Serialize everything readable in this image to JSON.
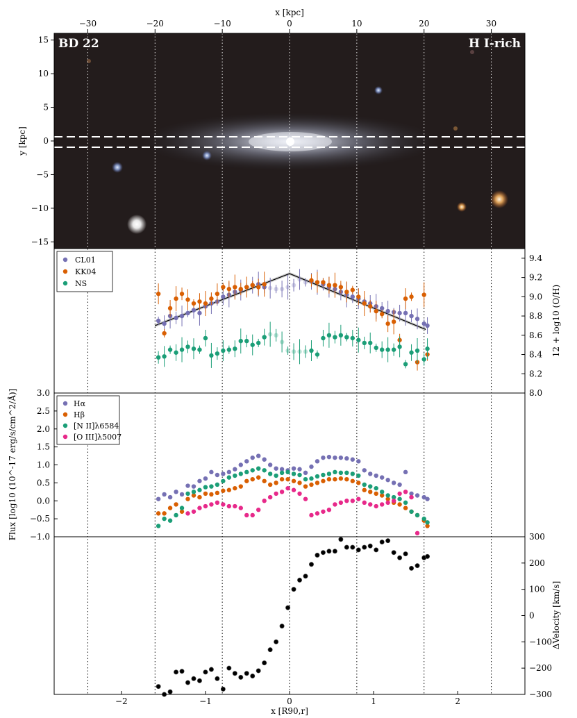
{
  "figure": {
    "galaxy_label": "BD 22",
    "class_label": "H I-rich",
    "colors": {
      "purple": "#7570b3",
      "orange": "#d95f02",
      "green": "#1b9e77",
      "pink": "#e7298a",
      "black": "#000000"
    }
  },
  "chart_data": [
    {
      "type": "image",
      "panel": "galaxy-image",
      "xlabel": "x [kpc]",
      "ylabel": "y [kpc]",
      "xlim": [
        -35,
        35
      ],
      "ylim": [
        -16,
        16
      ],
      "xticks": [
        -30,
        -20,
        -10,
        0,
        10,
        20,
        30
      ],
      "yticks": [
        -15,
        -10,
        -5,
        0,
        5,
        10,
        15
      ],
      "slit_y": [
        0.8,
        -0.8
      ],
      "vlines_kpc": [
        -30,
        -20,
        -10,
        0,
        10,
        20,
        30
      ]
    },
    {
      "type": "scatter",
      "panel": "metallicity",
      "ylabel": "12 + log10 (O/H)",
      "ylim": [
        8.0,
        9.5
      ],
      "yticks": [
        8.0,
        8.2,
        8.4,
        8.6,
        8.8,
        9.0,
        9.2,
        9.4
      ],
      "yticklabels": [
        "8.0",
        "8.2",
        "8.4",
        "8.6",
        "8.8",
        "9.0",
        "9.2",
        "9.4"
      ],
      "series": [
        {
          "name": "CL01",
          "color": "#7570b3",
          "x": [
            -1.56,
            -1.49,
            -1.42,
            -1.35,
            -1.28,
            -1.21,
            -1.14,
            -1.07,
            -1.0,
            -0.93,
            -0.86,
            -0.79,
            -0.72,
            -0.65,
            -0.58,
            -0.51,
            -0.44,
            -0.37,
            -0.3,
            -0.23,
            -0.16,
            -0.09,
            -0.02,
            0.05,
            0.12,
            0.19,
            0.26,
            0.33,
            0.4,
            0.47,
            0.54,
            0.61,
            0.68,
            0.75,
            0.82,
            0.89,
            0.96,
            1.03,
            1.1,
            1.17,
            1.24,
            1.31,
            1.38,
            1.45,
            1.52,
            1.6,
            1.64
          ],
          "y": [
            8.75,
            8.72,
            8.8,
            8.78,
            8.8,
            8.83,
            8.86,
            8.83,
            8.9,
            8.93,
            8.95,
            9.0,
            9.02,
            9.05,
            9.07,
            9.1,
            9.12,
            9.13,
            9.1,
            9.09,
            9.08,
            9.08,
            9.1,
            9.12,
            9.18,
            9.15,
            9.16,
            9.15,
            9.13,
            9.1,
            9.08,
            9.05,
            9.02,
            9.0,
            8.98,
            8.95,
            8.93,
            8.9,
            8.88,
            8.85,
            8.84,
            8.83,
            8.83,
            8.8,
            8.77,
            8.72,
            8.7
          ]
        },
        {
          "name": "KK04",
          "color": "#d95f02",
          "x": [
            -1.56,
            -1.49,
            -1.42,
            -1.35,
            -1.28,
            -1.21,
            -1.14,
            -1.07,
            -1.0,
            -0.93,
            -0.86,
            -0.79,
            -0.72,
            -0.65,
            -0.58,
            -0.51,
            -0.44,
            -0.37,
            -0.3,
            0.26,
            0.33,
            0.4,
            0.47,
            0.54,
            0.61,
            0.68,
            0.75,
            0.82,
            0.89,
            0.96,
            1.03,
            1.1,
            1.17,
            1.24,
            1.31,
            1.38,
            1.45,
            1.52,
            1.6,
            1.64
          ],
          "y": [
            9.03,
            8.62,
            8.88,
            8.98,
            9.03,
            8.97,
            8.93,
            8.95,
            8.93,
            8.98,
            9.03,
            9.1,
            9.08,
            9.1,
            9.08,
            9.1,
            9.12,
            9.1,
            9.13,
            9.17,
            9.15,
            9.15,
            9.12,
            9.12,
            9.1,
            9.05,
            9.07,
            9.0,
            8.93,
            8.9,
            8.85,
            8.82,
            8.72,
            8.74,
            8.55,
            8.98,
            9.0,
            8.32,
            9.02,
            8.4
          ]
        },
        {
          "name": "NS",
          "color": "#1b9e77",
          "x": [
            -1.56,
            -1.49,
            -1.42,
            -1.35,
            -1.28,
            -1.21,
            -1.14,
            -1.07,
            -1.0,
            -0.93,
            -0.86,
            -0.79,
            -0.72,
            -0.65,
            -0.58,
            -0.51,
            -0.44,
            -0.37,
            -0.3,
            -0.23,
            -0.16,
            -0.09,
            -0.02,
            0.05,
            0.12,
            0.19,
            0.26,
            0.33,
            0.4,
            0.47,
            0.54,
            0.61,
            0.68,
            0.75,
            0.82,
            0.89,
            0.96,
            1.03,
            1.1,
            1.17,
            1.24,
            1.31,
            1.38,
            1.45,
            1.52,
            1.6,
            1.64
          ],
          "y": [
            8.37,
            8.38,
            8.45,
            8.42,
            8.45,
            8.48,
            8.46,
            8.45,
            8.57,
            8.39,
            8.41,
            8.44,
            8.45,
            8.46,
            8.54,
            8.54,
            8.5,
            8.52,
            8.58,
            8.61,
            8.6,
            8.53,
            8.44,
            8.43,
            8.43,
            8.43,
            8.44,
            8.4,
            8.57,
            8.6,
            8.58,
            8.6,
            8.58,
            8.57,
            8.55,
            8.52,
            8.52,
            8.47,
            8.45,
            8.45,
            8.45,
            8.48,
            8.3,
            8.42,
            8.44,
            8.35,
            8.46
          ]
        }
      ],
      "fit_line": {
        "x": [
          -1.6,
          0.0,
          1.62
        ],
        "y": [
          8.7,
          9.24,
          8.66
        ]
      }
    },
    {
      "type": "scatter",
      "panel": "flux",
      "ylabel": "Flux [log10 (10^-17 erg/s/cm^2/Å)]",
      "ylim": [
        -1.0,
        3.0
      ],
      "yticks": [
        -1.0,
        -0.5,
        0.0,
        0.5,
        1.0,
        1.5,
        2.0,
        2.5,
        3.0
      ],
      "yticklabels": [
        "−1.0",
        "−0.5",
        "0.0",
        "0.5",
        "1.0",
        "1.5",
        "2.0",
        "2.5",
        "3.0"
      ],
      "series": [
        {
          "name": "Hα",
          "color": "#7570b3",
          "x": [
            -1.56,
            -1.49,
            -1.42,
            -1.35,
            -1.28,
            -1.21,
            -1.14,
            -1.07,
            -1.0,
            -0.93,
            -0.86,
            -0.79,
            -0.72,
            -0.65,
            -0.58,
            -0.51,
            -0.44,
            -0.37,
            -0.3,
            -0.23,
            -0.16,
            -0.09,
            -0.02,
            0.05,
            0.12,
            0.19,
            0.26,
            0.33,
            0.4,
            0.47,
            0.54,
            0.61,
            0.68,
            0.75,
            0.82,
            0.89,
            0.96,
            1.03,
            1.1,
            1.17,
            1.24,
            1.31,
            1.38,
            1.45,
            1.52,
            1.6,
            1.64
          ],
          "y": [
            0.05,
            0.18,
            0.1,
            0.25,
            0.18,
            0.42,
            0.4,
            0.55,
            0.62,
            0.8,
            0.72,
            0.75,
            0.8,
            0.88,
            1.0,
            1.1,
            1.2,
            1.25,
            1.15,
            1.0,
            0.9,
            0.88,
            0.85,
            0.9,
            0.88,
            0.78,
            0.95,
            1.1,
            1.2,
            1.22,
            1.2,
            1.2,
            1.18,
            1.15,
            1.1,
            0.85,
            0.75,
            0.7,
            0.65,
            0.58,
            0.5,
            0.45,
            0.8,
            0.2,
            0.15,
            0.1,
            0.05
          ]
        },
        {
          "name": "Hβ",
          "color": "#d95f02",
          "x": [
            -1.56,
            -1.49,
            -1.42,
            -1.35,
            -1.28,
            -1.21,
            -1.14,
            -1.07,
            -1.0,
            -0.93,
            -0.86,
            -0.79,
            -0.72,
            -0.65,
            -0.58,
            -0.51,
            -0.44,
            -0.37,
            -0.3,
            -0.23,
            -0.16,
            -0.09,
            -0.02,
            0.05,
            0.12,
            0.19,
            0.26,
            0.33,
            0.4,
            0.47,
            0.54,
            0.61,
            0.68,
            0.75,
            0.82,
            0.89,
            0.96,
            1.03,
            1.1,
            1.17,
            1.24,
            1.31,
            1.38,
            1.45,
            1.52,
            1.6,
            1.64
          ],
          "y": [
            -0.35,
            -0.35,
            -0.2,
            -0.1,
            -0.3,
            0.05,
            0.15,
            0.1,
            0.2,
            0.18,
            0.22,
            0.28,
            0.3,
            0.35,
            0.4,
            0.55,
            0.6,
            0.65,
            0.55,
            0.45,
            0.5,
            0.6,
            0.6,
            0.55,
            0.5,
            0.4,
            0.45,
            0.5,
            0.55,
            0.6,
            0.6,
            0.62,
            0.6,
            0.55,
            0.5,
            0.3,
            0.25,
            0.2,
            0.15,
            0.05,
            -0.05,
            -0.1,
            -0.2,
            -0.3,
            -0.4,
            -0.55,
            -0.7
          ]
        },
        {
          "name": "[N II]λ6584",
          "color": "#1b9e77",
          "x": [
            -1.56,
            -1.49,
            -1.42,
            -1.35,
            -1.28,
            -1.21,
            -1.14,
            -1.07,
            -1.0,
            -0.93,
            -0.86,
            -0.79,
            -0.72,
            -0.65,
            -0.58,
            -0.51,
            -0.44,
            -0.37,
            -0.3,
            -0.23,
            -0.16,
            -0.09,
            -0.02,
            0.05,
            0.12,
            0.19,
            0.26,
            0.33,
            0.4,
            0.47,
            0.54,
            0.61,
            0.68,
            0.75,
            0.82,
            0.89,
            0.96,
            1.03,
            1.1,
            1.17,
            1.24,
            1.31,
            1.38,
            1.45,
            1.52,
            1.6,
            1.64
          ],
          "y": [
            -0.7,
            -0.5,
            -0.55,
            -0.4,
            -0.2,
            0.2,
            0.25,
            0.3,
            0.38,
            0.4,
            0.45,
            0.55,
            0.65,
            0.7,
            0.75,
            0.8,
            0.85,
            0.9,
            0.85,
            0.75,
            0.7,
            0.78,
            0.8,
            0.75,
            0.72,
            0.6,
            0.62,
            0.68,
            0.72,
            0.75,
            0.8,
            0.78,
            0.78,
            0.75,
            0.7,
            0.45,
            0.4,
            0.35,
            0.25,
            0.15,
            0.1,
            0.05,
            -0.05,
            -0.3,
            -0.4,
            -0.5,
            -0.6
          ]
        },
        {
          "name": "[O III]λ5007",
          "color": "#e7298a",
          "x": [
            -1.21,
            -1.14,
            -1.07,
            -1.0,
            -0.93,
            -0.86,
            -0.79,
            -0.72,
            -0.65,
            -0.58,
            -0.51,
            -0.44,
            -0.37,
            -0.3,
            -0.23,
            -0.16,
            -0.09,
            -0.02,
            0.05,
            0.12,
            0.19,
            0.26,
            0.33,
            0.4,
            0.47,
            0.54,
            0.61,
            0.68,
            0.75,
            0.82,
            0.89,
            0.96,
            1.03,
            1.1,
            1.17,
            1.24,
            1.31,
            1.38,
            1.45,
            1.52
          ],
          "y": [
            -0.35,
            -0.3,
            -0.2,
            -0.15,
            -0.1,
            -0.05,
            -0.1,
            -0.15,
            -0.15,
            -0.2,
            -0.4,
            -0.4,
            -0.25,
            0.0,
            0.1,
            0.2,
            0.25,
            0.35,
            0.3,
            0.2,
            0.05,
            -0.4,
            -0.35,
            -0.3,
            -0.25,
            -0.1,
            -0.05,
            0.0,
            0.0,
            0.05,
            -0.05,
            -0.1,
            -0.15,
            -0.1,
            -0.05,
            0.0,
            0.2,
            0.25,
            0.1,
            -0.9
          ]
        }
      ]
    },
    {
      "type": "scatter",
      "panel": "velocity",
      "xlabel": "x [R90,r]",
      "ylabel": "ΔVelocity [km/s]",
      "xlim": [
        -2.8,
        2.8
      ],
      "ylim": [
        -300,
        300
      ],
      "xticks": [
        -2,
        -1,
        0,
        1,
        2
      ],
      "xticklabels": [
        "−2",
        "−1",
        "0",
        "1",
        "2"
      ],
      "yticks": [
        -300,
        -200,
        -100,
        0,
        100,
        200,
        300
      ],
      "yticklabels": [
        "−300",
        "−200",
        "−100",
        "0",
        "100",
        "200",
        "300"
      ],
      "series": [
        {
          "name": "",
          "color": "#000000",
          "x": [
            -1.56,
            -1.49,
            -1.42,
            -1.35,
            -1.28,
            -1.21,
            -1.14,
            -1.07,
            -1.0,
            -0.93,
            -0.86,
            -0.79,
            -0.72,
            -0.65,
            -0.58,
            -0.51,
            -0.44,
            -0.37,
            -0.3,
            -0.23,
            -0.16,
            -0.09,
            -0.02,
            0.05,
            0.12,
            0.19,
            0.26,
            0.33,
            0.4,
            0.47,
            0.54,
            0.61,
            0.68,
            0.75,
            0.82,
            0.89,
            0.96,
            1.03,
            1.1,
            1.17,
            1.24,
            1.31,
            1.38,
            1.45,
            1.52,
            1.6,
            1.64
          ],
          "y": [
            -270,
            -300,
            -290,
            -215,
            -212,
            -255,
            -240,
            -248,
            -215,
            -205,
            -240,
            -280,
            -200,
            -220,
            -235,
            -220,
            -230,
            -210,
            -180,
            -130,
            -100,
            -40,
            30,
            100,
            135,
            150,
            195,
            230,
            240,
            245,
            245,
            290,
            260,
            260,
            250,
            260,
            265,
            250,
            280,
            285,
            240,
            220,
            235,
            180,
            190,
            220,
            225
          ]
        }
      ]
    }
  ],
  "common": {
    "top_xlabel": "x [kpc]",
    "top_xticks": [
      -30,
      -20,
      -10,
      0,
      10,
      20,
      30
    ],
    "top_xticklabels": [
      "−30",
      "−20",
      "−10",
      "0",
      "10",
      "20",
      "30"
    ],
    "vlines_r90": [
      -2.4,
      -1.6,
      -0.8,
      0,
      0.8,
      1.6,
      2.4
    ]
  }
}
